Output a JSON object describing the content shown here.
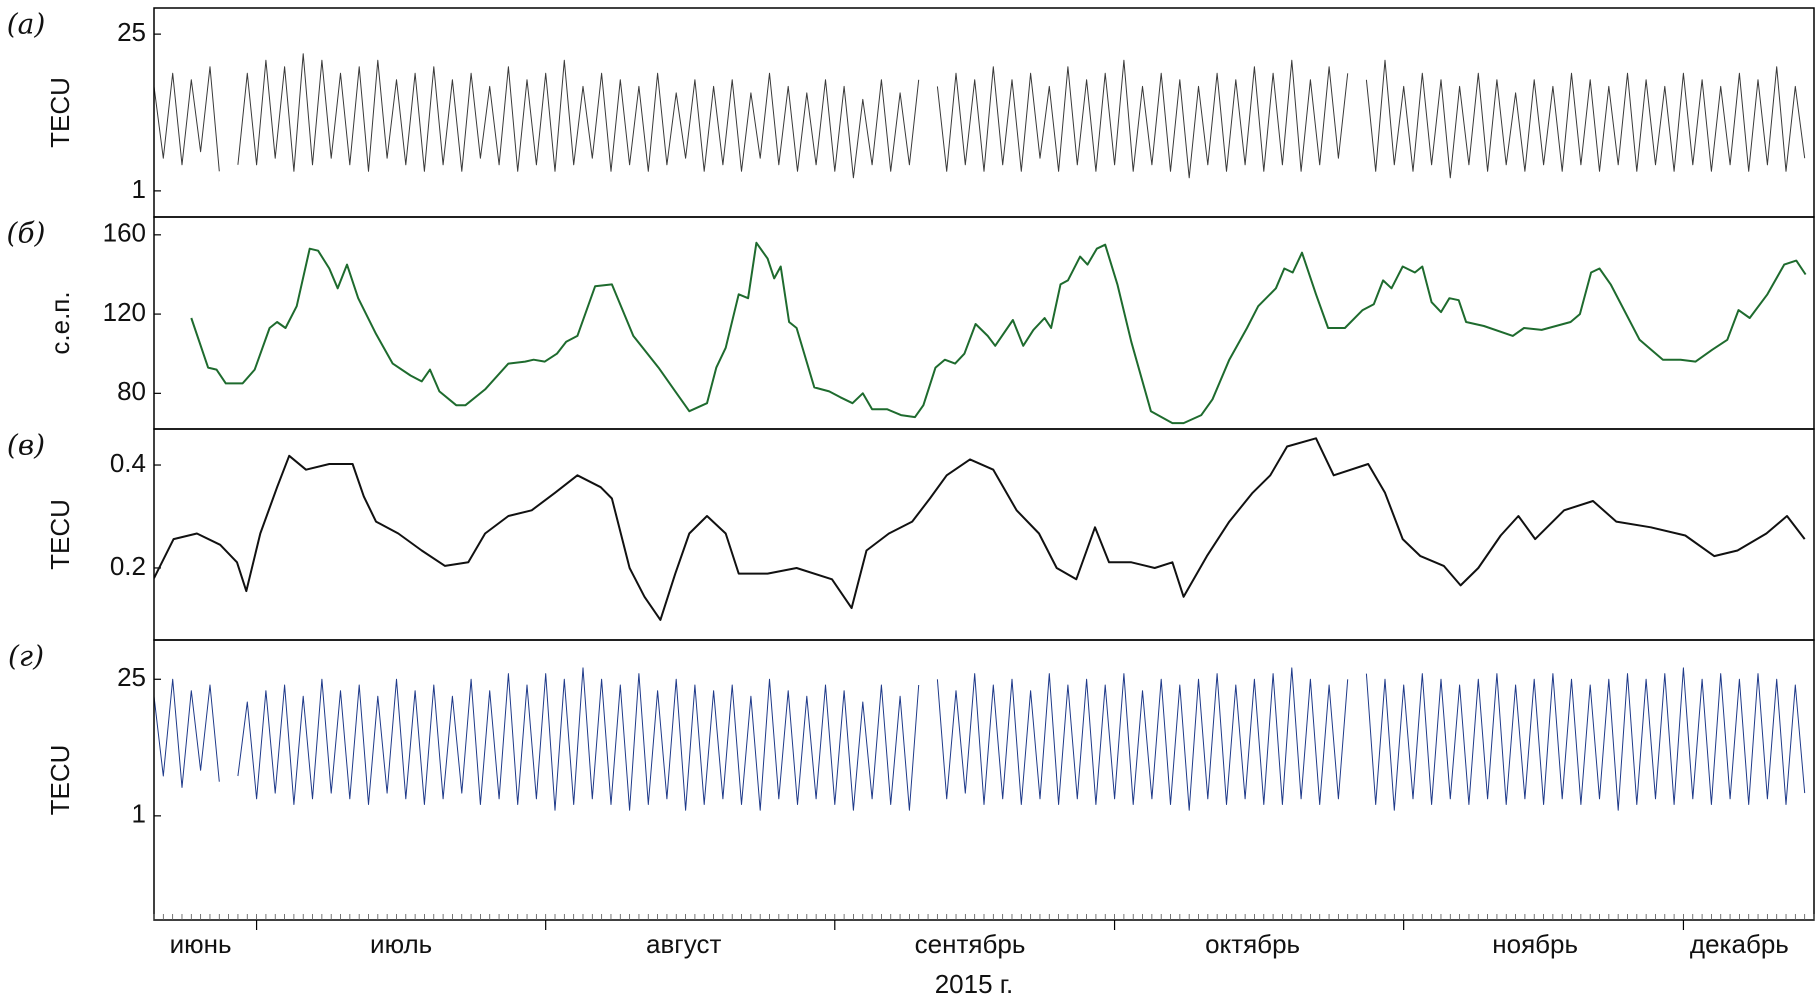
{
  "chart_data": [
    {
      "type": "line",
      "label": "(а)",
      "ylabel": "TECU",
      "color": "#3a3a3a",
      "xlim": [
        19,
        197
      ],
      "ylim": [
        -3,
        29
      ],
      "yticks": [
        1,
        25
      ],
      "x": [
        19,
        20,
        21,
        22,
        23,
        24,
        25,
        26,
        27,
        28,
        29,
        30,
        31,
        32,
        33,
        34,
        35,
        36,
        37,
        38,
        39,
        40,
        41,
        42,
        43,
        44,
        45,
        46,
        47,
        48,
        49,
        50,
        51,
        52,
        53,
        54,
        55,
        56,
        57,
        58,
        59,
        60,
        61,
        62,
        63,
        64,
        65,
        66,
        67,
        68,
        69,
        70,
        71,
        72,
        73,
        74,
        75,
        76,
        77,
        78,
        79,
        80,
        81,
        82,
        83,
        84,
        85,
        86,
        87,
        88,
        89,
        90,
        91,
        92,
        93,
        94,
        95,
        96,
        97,
        98,
        99,
        100,
        101,
        102,
        103,
        104,
        105,
        106,
        107,
        108,
        109,
        110,
        111,
        112,
        113,
        114,
        115,
        116,
        117,
        118,
        119,
        120,
        121,
        122,
        123,
        124,
        125,
        126,
        127,
        128,
        129,
        130,
        131,
        132,
        133,
        134,
        135,
        136,
        137,
        138,
        139,
        140,
        141,
        142,
        143,
        144,
        145,
        146,
        147,
        148,
        149,
        150,
        151,
        152,
        153,
        154,
        155,
        156,
        157,
        158,
        159,
        160,
        161,
        162,
        163,
        164,
        165,
        166,
        167,
        168,
        169,
        170,
        171,
        172,
        173,
        174,
        175,
        176,
        177,
        178,
        179,
        180,
        181,
        182,
        183,
        184,
        185,
        186,
        187,
        188,
        189,
        190,
        191,
        192,
        193,
        194,
        195,
        196
      ],
      "values": [
        17,
        6,
        19,
        5,
        18,
        7,
        20,
        4,
        null,
        5,
        19,
        5,
        21,
        6,
        20,
        4,
        22,
        5,
        21,
        6,
        19,
        5,
        20,
        4,
        21,
        6,
        18,
        5,
        19,
        4,
        20,
        5,
        18,
        4,
        19,
        6,
        17,
        5,
        20,
        4,
        18,
        5,
        19,
        4,
        21,
        5,
        17,
        6,
        19,
        4,
        18,
        5,
        17,
        4,
        19,
        5,
        16,
        6,
        18,
        4,
        17,
        5,
        18,
        4,
        16,
        6,
        19,
        5,
        17,
        4,
        16,
        5,
        18,
        4,
        17,
        3,
        15,
        5,
        18,
        4,
        16,
        5,
        18,
        null,
        17,
        4,
        19,
        5,
        18,
        4,
        20,
        5,
        18,
        4,
        19,
        6,
        17,
        4,
        20,
        5,
        18,
        4,
        19,
        5,
        21,
        4,
        17,
        5,
        19,
        4,
        18,
        3,
        17,
        5,
        19,
        4,
        18,
        5,
        20,
        4,
        19,
        5,
        21,
        4,
        18,
        5,
        20,
        6,
        19,
        null,
        18,
        4,
        21,
        5,
        17,
        4,
        19,
        5,
        18,
        3,
        17,
        5,
        19,
        4,
        18,
        5,
        16,
        4,
        18,
        5,
        17,
        4,
        19,
        5,
        18,
        4,
        17,
        5,
        19,
        4,
        18,
        5,
        17,
        4,
        19,
        5,
        18,
        4,
        17,
        5,
        19,
        4,
        18,
        5,
        20,
        4,
        17,
        6
      ]
    },
    {
      "type": "line",
      "label": "(б)",
      "ylabel": "с.е.п.",
      "color": "#1e6b2e",
      "xlim": [
        19,
        197
      ],
      "ylim": [
        62,
        169
      ],
      "yticks": [
        80,
        120,
        160
      ],
      "x": [
        23,
        24.8,
        25.7,
        26.7,
        28.5,
        29.8,
        31.4,
        32.2,
        33.1,
        34.3,
        35.7,
        36.6,
        37.8,
        38.7,
        39.7,
        40.9,
        42.8,
        44.6,
        46.5,
        47.7,
        48.6,
        49.6,
        51.4,
        52.4,
        54.5,
        57,
        58.8,
        59.7,
        60.9,
        62.2,
        63.2,
        64.4,
        66.3,
        68.1,
        70.4,
        73.1,
        74.9,
        76.4,
        78.3,
        79.3,
        80.3,
        81.7,
        82.7,
        83.6,
        84.8,
        85.5,
        86.2,
        87.1,
        87.9,
        89.8,
        91.4,
        92.6,
        93.9,
        95,
        96,
        97.6,
        99.1,
        100.6,
        101.5,
        102.8,
        103.8,
        104.9,
        105.9,
        107.1,
        108.4,
        109.2,
        111.1,
        112.2,
        113.3,
        114.5,
        115.2,
        116.2,
        117,
        118.3,
        119.1,
        120.1,
        121,
        122.3,
        123.8,
        125.9,
        128.2,
        129.4,
        131.3,
        132.5,
        134.3,
        136.2,
        137.4,
        139.3,
        140.2,
        141.1,
        142.1,
        143.6,
        144.9,
        146.7,
        148.6,
        149.8,
        150.8,
        151.7,
        152.9,
        154.2,
        155,
        156,
        157,
        157.9,
        158.9,
        159.7,
        161.6,
        164.7,
        165.9,
        167.8,
        170.9,
        171.9,
        173.1,
        174,
        175.2,
        178.3,
        180.8,
        182.7,
        184.3,
        186.1,
        187.7,
        188.9,
        190.1,
        192,
        193.8,
        195.1,
        196.1
      ],
      "values": [
        118,
        93,
        92,
        85,
        85,
        92,
        113,
        116,
        113,
        124,
        153,
        152,
        143,
        133,
        145,
        128,
        110,
        95,
        89,
        86,
        92,
        81,
        74,
        74,
        82,
        95,
        96,
        97,
        96,
        100,
        106,
        109,
        134,
        135,
        109,
        93,
        81,
        71,
        75,
        93,
        103,
        130,
        128,
        156,
        148,
        138,
        144,
        116,
        113,
        83,
        81,
        78,
        75,
        80,
        72,
        72,
        69,
        68,
        74,
        93,
        97,
        95,
        100,
        115,
        109,
        104,
        117,
        104,
        112,
        118,
        113,
        135,
        137,
        149,
        145,
        153,
        155,
        135,
        106,
        71,
        65,
        65,
        69,
        77,
        97,
        113,
        124,
        133,
        143,
        141,
        151,
        130,
        113,
        113,
        122,
        125,
        137,
        133,
        144,
        141,
        144,
        126,
        121,
        128,
        127,
        116,
        114,
        109,
        113,
        112,
        116,
        120,
        141,
        143,
        135,
        107,
        97,
        97,
        96,
        102,
        107,
        122,
        118,
        130,
        145,
        147,
        140
      ]
    },
    {
      "type": "line",
      "label": "(в)",
      "ylabel": "TECU",
      "color": "#111111",
      "xlim": [
        19,
        197
      ],
      "ylim": [
        0.06,
        0.47
      ],
      "yticks": [
        0.2,
        0.4
      ],
      "x": [
        19,
        21.1,
        23.6,
        26.1,
        27.9,
        28.9,
        30.4,
        32.2,
        33.5,
        35.3,
        37.8,
        40.3,
        41.5,
        42.8,
        45.2,
        47.7,
        50.2,
        52.7,
        54.5,
        57,
        59.5,
        62,
        64.4,
        66.9,
        68.1,
        70,
        71.6,
        73.3,
        74.9,
        76.4,
        78.3,
        80.3,
        81.7,
        84.8,
        87.9,
        91.7,
        93.8,
        95.4,
        97.8,
        100.3,
        102.2,
        104,
        106.5,
        109,
        111.5,
        113.9,
        115.8,
        117.9,
        119.9,
        121.4,
        123.8,
        126.3,
        128.2,
        129.4,
        131.9,
        134.3,
        136.8,
        138.7,
        140.5,
        143.6,
        145.5,
        149.2,
        151,
        152.9,
        154.8,
        157.3,
        159.1,
        161,
        163.4,
        165.3,
        167.1,
        170.2,
        173.3,
        175.8,
        179.5,
        183.2,
        186.3,
        188.8,
        191.9,
        194.1,
        196
      ],
      "values": [
        0.18,
        0.256,
        0.267,
        0.245,
        0.211,
        0.155,
        0.267,
        0.357,
        0.418,
        0.391,
        0.402,
        0.402,
        0.339,
        0.29,
        0.267,
        0.234,
        0.204,
        0.211,
        0.267,
        0.301,
        0.312,
        0.346,
        0.38,
        0.357,
        0.335,
        0.2,
        0.144,
        0.099,
        0.189,
        0.267,
        0.301,
        0.267,
        0.189,
        0.189,
        0.2,
        0.178,
        0.122,
        0.234,
        0.267,
        0.29,
        0.335,
        0.38,
        0.411,
        0.391,
        0.312,
        0.267,
        0.2,
        0.178,
        0.279,
        0.211,
        0.211,
        0.2,
        0.211,
        0.144,
        0.223,
        0.29,
        0.346,
        0.38,
        0.436,
        0.452,
        0.38,
        0.402,
        0.346,
        0.256,
        0.223,
        0.204,
        0.166,
        0.2,
        0.263,
        0.301,
        0.256,
        0.312,
        0.33,
        0.29,
        0.279,
        0.263,
        0.223,
        0.234,
        0.267,
        0.301,
        0.256
      ]
    },
    {
      "type": "line",
      "label": "(г)",
      "ylabel": "TECU",
      "color": "#1f3a8a",
      "xlim": [
        19,
        197
      ],
      "ylim": [
        -17.3,
        31.9
      ],
      "yticks": [
        1,
        25
      ],
      "xticks": [
        30,
        61,
        92,
        122,
        153,
        183
      ],
      "xminor": 1,
      "month_labels": [
        {
          "value": 24,
          "label": "июнь"
        },
        {
          "value": 45.5,
          "label": "июль"
        },
        {
          "value": 75.8,
          "label": "август"
        },
        {
          "value": 106.5,
          "label": "сентябрь"
        },
        {
          "value": 136.8,
          "label": "октябрь"
        },
        {
          "value": 167.1,
          "label": "ноябрь"
        },
        {
          "value": 189,
          "label": "декабрь"
        }
      ],
      "xlabel": "2015 г.",
      "x": [
        19,
        20,
        21,
        22,
        23,
        24,
        25,
        26,
        27,
        28,
        29,
        30,
        31,
        32,
        33,
        34,
        35,
        36,
        37,
        38,
        39,
        40,
        41,
        42,
        43,
        44,
        45,
        46,
        47,
        48,
        49,
        50,
        51,
        52,
        53,
        54,
        55,
        56,
        57,
        58,
        59,
        60,
        61,
        62,
        63,
        64,
        65,
        66,
        67,
        68,
        69,
        70,
        71,
        72,
        73,
        74,
        75,
        76,
        77,
        78,
        79,
        80,
        81,
        82,
        83,
        84,
        85,
        86,
        87,
        88,
        89,
        90,
        91,
        92,
        93,
        94,
        95,
        96,
        97,
        98,
        99,
        100,
        101,
        102,
        103,
        104,
        105,
        106,
        107,
        108,
        109,
        110,
        111,
        112,
        113,
        114,
        115,
        116,
        117,
        118,
        119,
        120,
        121,
        122,
        123,
        124,
        125,
        126,
        127,
        128,
        129,
        130,
        131,
        132,
        133,
        134,
        135,
        136,
        137,
        138,
        139,
        140,
        141,
        142,
        143,
        144,
        145,
        146,
        147,
        148,
        149,
        150,
        151,
        152,
        153,
        154,
        155,
        156,
        157,
        158,
        159,
        160,
        161,
        162,
        163,
        164,
        165,
        166,
        167,
        168,
        169,
        170,
        171,
        172,
        173,
        174,
        175,
        176,
        177,
        178,
        179,
        180,
        181,
        182,
        183,
        184,
        185,
        186,
        187,
        188,
        189,
        190,
        191,
        192,
        193,
        194,
        195,
        196
      ],
      "values": [
        22,
        8,
        25,
        6,
        23,
        9,
        24,
        7,
        null,
        8,
        21,
        4,
        23,
        5,
        24,
        3,
        22,
        4,
        25,
        5,
        23,
        4,
        24,
        3,
        22,
        5,
        25,
        4,
        23,
        3,
        24,
        4,
        22,
        5,
        25,
        3,
        23,
        4,
        26,
        3,
        24,
        4,
        26,
        2,
        25,
        3,
        27,
        4,
        25,
        3,
        24,
        2,
        26,
        3,
        23,
        4,
        25,
        2,
        24,
        3,
        23,
        4,
        24,
        3,
        22,
        2,
        25,
        4,
        23,
        3,
        22,
        4,
        24,
        3,
        23,
        2,
        21,
        4,
        24,
        3,
        22,
        2,
        24,
        null,
        25,
        4,
        23,
        5,
        26,
        3,
        24,
        4,
        25,
        3,
        23,
        4,
        26,
        3,
        24,
        4,
        25,
        3,
        24,
        4,
        26,
        3,
        23,
        4,
        25,
        3,
        24,
        2,
        25,
        4,
        26,
        3,
        24,
        4,
        25,
        3,
        26,
        3,
        27,
        4,
        25,
        3,
        24,
        4,
        25,
        null,
        26,
        3,
        25,
        2,
        24,
        4,
        26,
        3,
        25,
        4,
        24,
        3,
        25,
        4,
        26,
        3,
        24,
        4,
        25,
        3,
        26,
        4,
        25,
        3,
        24,
        4,
        25,
        2,
        26,
        3,
        25,
        4,
        26,
        3,
        27,
        4,
        25,
        3,
        26,
        4,
        25,
        3,
        26,
        4,
        25,
        3,
        24,
        5
      ]
    }
  ]
}
